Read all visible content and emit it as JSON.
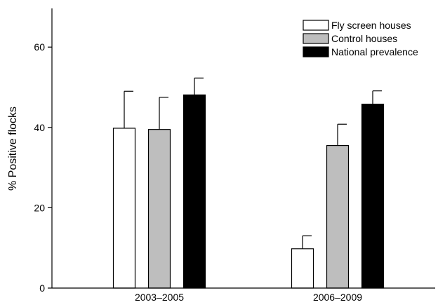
{
  "chart_data": {
    "type": "bar",
    "title": "",
    "xlabel": "",
    "ylabel": "% Positive flocks",
    "ylim": [
      0,
      70
    ],
    "yticks": [
      0,
      20,
      40,
      60
    ],
    "grid": false,
    "legend_position": "top-right",
    "categories": [
      "2003–2005",
      "2006–2009"
    ],
    "series": [
      {
        "name": "Fly screen houses",
        "color": "#ffffff",
        "values": [
          39.8,
          9.8
        ],
        "errors": [
          9.2,
          3.2
        ]
      },
      {
        "name": "Control houses",
        "color": "#bebebe",
        "values": [
          39.5,
          35.5
        ],
        "errors": [
          8.0,
          5.3
        ]
      },
      {
        "name": "National prevalence",
        "color": "#000000",
        "values": [
          48.1,
          45.8
        ],
        "errors": [
          4.2,
          3.3
        ]
      }
    ]
  }
}
